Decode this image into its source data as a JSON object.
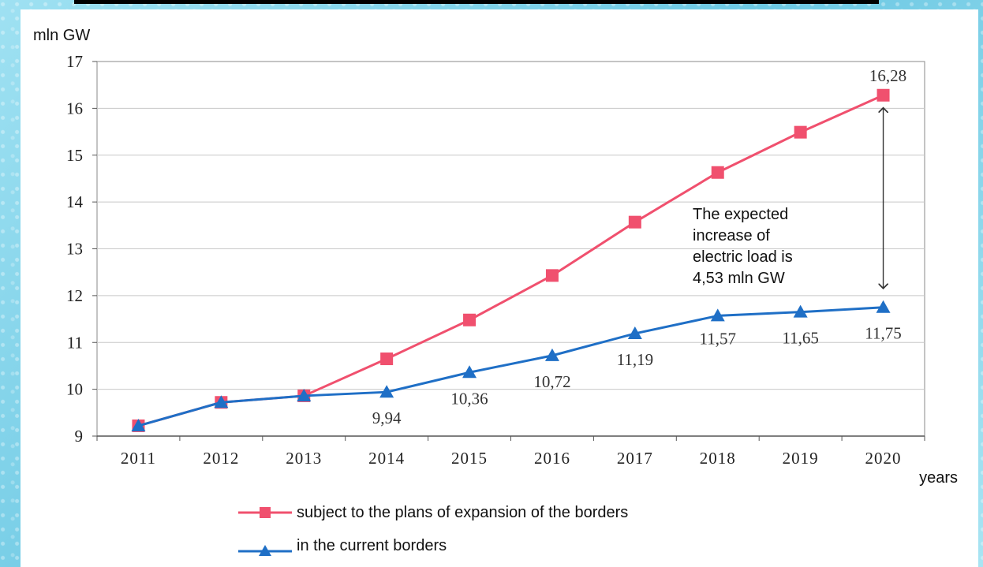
{
  "chart_data": {
    "type": "line",
    "ylabel": "mln GW",
    "xlabel": "years",
    "ylim": [
      9,
      17
    ],
    "yticks": [
      "9",
      "10",
      "11",
      "12",
      "13",
      "14",
      "15",
      "16",
      "17"
    ],
    "categories": [
      "2011",
      "2012",
      "2013",
      "2014",
      "2015",
      "2016",
      "2017",
      "2018",
      "2019",
      "2020"
    ],
    "grid": true,
    "legend_position": "bottom",
    "series": [
      {
        "name": "subject  to the plans of expansion of the borders",
        "color": "#f0506e",
        "marker": "square",
        "values": [
          9.22,
          9.72,
          9.86,
          10.65,
          11.48,
          12.43,
          13.57,
          14.63,
          15.49,
          16.28
        ],
        "data_labels": [
          "",
          "",
          "",
          "",
          "",
          "",
          "",
          "",
          "",
          "16,28"
        ]
      },
      {
        "name": "in the current borders",
        "color": "#1f6fc6",
        "marker": "triangle",
        "values": [
          9.22,
          9.72,
          9.86,
          9.94,
          10.36,
          10.72,
          11.19,
          11.57,
          11.65,
          11.75
        ],
        "data_labels": [
          "",
          "",
          "",
          "9,94",
          "10,36",
          "10,72",
          "11,19",
          "11,57",
          "11,65",
          "11,75"
        ]
      }
    ],
    "annotation": {
      "lines": [
        "The expected",
        "increase of",
        "electric load is",
        "4,53 mln GW"
      ],
      "arrow_from": 16.28,
      "arrow_to": 11.75,
      "category": "2020"
    }
  }
}
